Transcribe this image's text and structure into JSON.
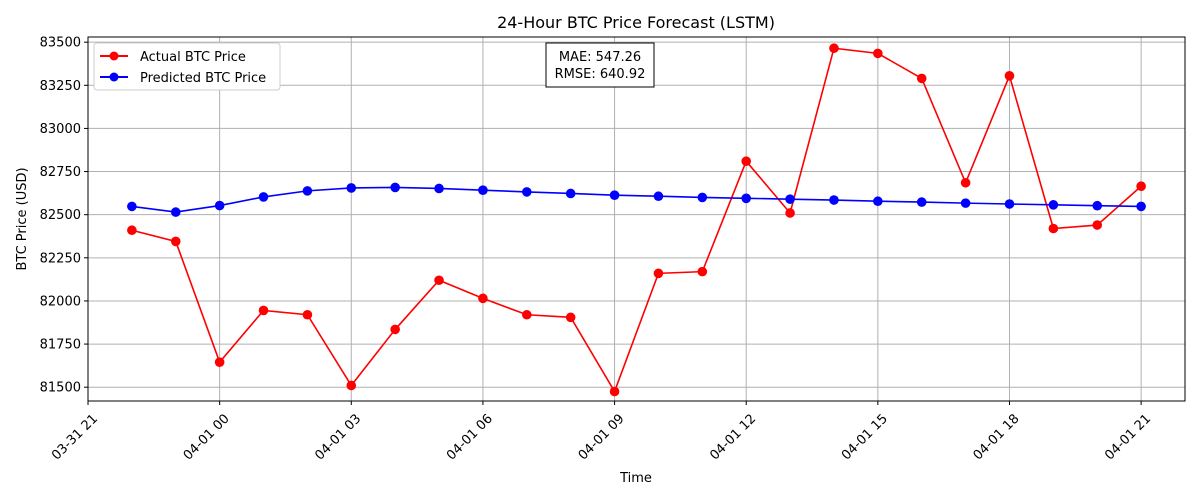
{
  "chart_data": {
    "type": "line",
    "title": "24-Hour BTC Price Forecast (LSTM)",
    "xlabel": "Time",
    "ylabel": "BTC Price (USD)",
    "x": [
      "03-31 22:00",
      "03-31 23:00",
      "04-01 00:00",
      "04-01 01:00",
      "04-01 02:00",
      "04-01 03:00",
      "04-01 04:00",
      "04-01 05:00",
      "04-01 06:00",
      "04-01 07:00",
      "04-01 08:00",
      "04-01 09:00",
      "04-01 10:00",
      "04-01 11:00",
      "04-01 12:00",
      "04-01 13:00",
      "04-01 14:00",
      "04-01 15:00",
      "04-01 16:00",
      "04-01 17:00",
      "04-01 18:00",
      "04-01 19:00",
      "04-01 20:00",
      "04-01 21:00"
    ],
    "xlim": [
      "03-31 21:00",
      "04-01 22:00"
    ],
    "ylim": [
      81420,
      83530
    ],
    "x_ticks": [
      "03-31 21",
      "04-01 00",
      "04-01 03",
      "04-01 06",
      "04-01 09",
      "04-01 12",
      "04-01 15",
      "04-01 18",
      "04-01 21"
    ],
    "y_ticks": [
      81500,
      81750,
      82000,
      82250,
      82500,
      82750,
      83000,
      83250,
      83500
    ],
    "grid": true,
    "legend_position": "upper left",
    "series": [
      {
        "name": "Actual BTC Price",
        "color": "#ff0000",
        "marker": "circle",
        "values": [
          82410,
          82345,
          81645,
          81945,
          81920,
          81510,
          81835,
          82120,
          82015,
          81920,
          81905,
          81475,
          82160,
          82170,
          82810,
          82510,
          83465,
          83435,
          83290,
          82685,
          83305,
          82420,
          82440,
          82665
        ]
      },
      {
        "name": "Predicted BTC Price",
        "color": "#0000ff",
        "marker": "circle",
        "values": [
          82548,
          82515,
          82553,
          82603,
          82638,
          82655,
          82658,
          82652,
          82642,
          82632,
          82623,
          82613,
          82607,
          82600,
          82595,
          82590,
          82585,
          82578,
          82573,
          82567,
          82562,
          82557,
          82552,
          82548
        ]
      }
    ],
    "annotation": {
      "line1": "MAE: 547.26",
      "line2": "RMSE: 640.92"
    }
  }
}
